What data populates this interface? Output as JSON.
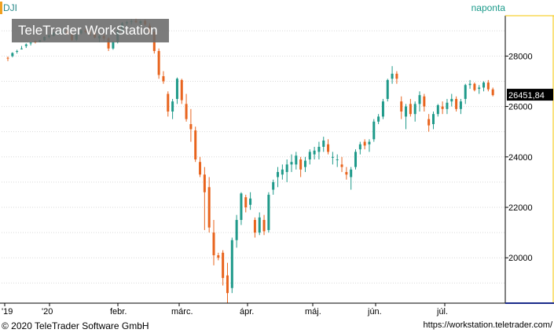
{
  "header": {
    "symbol": "DJI",
    "period": "naponta"
  },
  "watermark": "TeleTrader WorkStation",
  "footer": {
    "copyright": "© 2020 TeleTrader Software GmbH",
    "url": "https://workstation.teletrader.com/"
  },
  "colors": {
    "up": "#1f9a8a",
    "down": "#e8641e",
    "grid": "#d9d9d9",
    "axis_highlight": "#f4c400",
    "last_price_bg": "#000000"
  },
  "chart_data": {
    "type": "candlestick",
    "title": "DJI",
    "ylim": [
      18200,
      29600
    ],
    "y_ticks": [
      20000,
      22000,
      24000,
      26000,
      28000
    ],
    "y_tick_labels": [
      "20000",
      "22000",
      "24000",
      "26000",
      "28000"
    ],
    "x_tick_labels": [
      "'19",
      "'20",
      "febr.",
      "márc.",
      "ápr.",
      "máj.",
      "jún.",
      "júl."
    ],
    "last_price": 26451.84,
    "last_price_label": "26451,84",
    "grid": true,
    "series": [
      {
        "name": "DJI",
        "ohlc": [
          [
            27930,
            27980,
            27800,
            27920
          ],
          [
            28000,
            28150,
            27950,
            28120
          ],
          [
            28200,
            28250,
            28100,
            28200
          ],
          [
            28280,
            28400,
            28260,
            28300
          ],
          [
            28400,
            28500,
            28320,
            28460
          ],
          [
            28500,
            28550,
            28420,
            28530
          ],
          [
            28600,
            28620,
            28500,
            28540
          ],
          [
            28560,
            28640,
            28540,
            28630
          ],
          [
            28620,
            28780,
            28600,
            28760
          ],
          [
            28750,
            28850,
            28700,
            28820
          ],
          [
            28800,
            28950,
            28780,
            28930
          ],
          [
            28900,
            29000,
            28850,
            28920
          ],
          [
            28950,
            29100,
            28900,
            28960
          ],
          [
            28980,
            29060,
            28850,
            28900
          ],
          [
            28850,
            28900,
            28600,
            28640
          ],
          [
            28650,
            28900,
            28600,
            28850
          ],
          [
            28900,
            29050,
            28860,
            29020
          ],
          [
            29000,
            29100,
            28900,
            28950
          ],
          [
            28950,
            29050,
            28800,
            28920
          ],
          [
            28900,
            29000,
            28700,
            28730
          ],
          [
            28700,
            28850,
            28550,
            28800
          ],
          [
            28800,
            28900,
            28600,
            28700
          ],
          [
            28700,
            28750,
            28200,
            28300
          ],
          [
            28300,
            28600,
            28250,
            28550
          ],
          [
            28550,
            29050,
            28500,
            29000
          ],
          [
            29000,
            29350,
            28950,
            29300
          ],
          [
            29300,
            29400,
            29200,
            29350
          ],
          [
            29350,
            29450,
            29250,
            29380
          ],
          [
            29400,
            29480,
            29300,
            29340
          ],
          [
            29300,
            29420,
            29250,
            29380
          ],
          [
            29400,
            29450,
            29200,
            29250
          ],
          [
            29200,
            29300,
            28900,
            28950
          ],
          [
            28950,
            29000,
            28100,
            28200
          ],
          [
            28200,
            28300,
            27100,
            27250
          ],
          [
            27200,
            27400,
            26900,
            27000
          ],
          [
            26500,
            26600,
            25600,
            25800
          ],
          [
            25800,
            26300,
            25500,
            26200
          ],
          [
            26300,
            27150,
            26100,
            27100
          ],
          [
            27050,
            27100,
            26100,
            26250
          ],
          [
            26100,
            26500,
            25400,
            25500
          ],
          [
            25300,
            25900,
            24600,
            25100
          ],
          [
            25050,
            25200,
            23800,
            23900
          ],
          [
            23800,
            24000,
            23200,
            23300
          ],
          [
            23300,
            23600,
            21100,
            22600
          ],
          [
            22800,
            23200,
            21000,
            21200
          ],
          [
            21000,
            21500,
            19700,
            20100
          ],
          [
            20100,
            20200,
            19900,
            20000
          ],
          [
            20200,
            20300,
            18900,
            19200
          ],
          [
            19300,
            19800,
            18200,
            18600
          ],
          [
            18800,
            20800,
            18600,
            20700
          ],
          [
            20700,
            21700,
            20400,
            21500
          ],
          [
            21500,
            22600,
            21300,
            22550
          ],
          [
            22400,
            22500,
            21800,
            22000
          ],
          [
            22100,
            22600,
            21900,
            22350
          ],
          [
            21500,
            21600,
            20800,
            21000
          ],
          [
            21000,
            21800,
            20900,
            21600
          ],
          [
            21500,
            21700,
            20900,
            21050
          ],
          [
            21100,
            22600,
            21000,
            22500
          ],
          [
            22700,
            23100,
            22500,
            23000
          ],
          [
            23200,
            23600,
            22800,
            23400
          ],
          [
            23300,
            23700,
            23100,
            23500
          ],
          [
            23400,
            23900,
            23000,
            23700
          ],
          [
            23700,
            24100,
            23400,
            23800
          ],
          [
            23700,
            24200,
            23500,
            24050
          ],
          [
            23900,
            24000,
            23200,
            23500
          ],
          [
            23600,
            24000,
            23400,
            23850
          ],
          [
            23900,
            24300,
            23700,
            24200
          ],
          [
            24100,
            24400,
            23900,
            24250
          ],
          [
            24200,
            24600,
            23900,
            24400
          ],
          [
            24400,
            24800,
            24200,
            24650
          ],
          [
            24500,
            24700,
            24100,
            24200
          ],
          [
            24000,
            24200,
            23700,
            24000
          ],
          [
            23900,
            24100,
            23600,
            23900
          ],
          [
            23700,
            24000,
            23400,
            23600
          ],
          [
            23400,
            23600,
            23100,
            23300
          ],
          [
            23200,
            23600,
            22700,
            23500
          ],
          [
            23600,
            24300,
            23500,
            24200
          ],
          [
            24300,
            24600,
            24100,
            24500
          ],
          [
            24600,
            24700,
            24300,
            24450
          ],
          [
            24500,
            24700,
            24200,
            24600
          ],
          [
            24700,
            25500,
            24600,
            25400
          ],
          [
            25400,
            25700,
            25300,
            25600
          ],
          [
            25600,
            26300,
            25500,
            26200
          ],
          [
            26300,
            27100,
            26200,
            27050
          ],
          [
            27100,
            27600,
            26900,
            27300
          ],
          [
            27300,
            27400,
            26900,
            27100
          ],
          [
            26200,
            26400,
            25500,
            25800
          ],
          [
            25600,
            26100,
            25100,
            26000
          ],
          [
            26100,
            26300,
            25600,
            25700
          ],
          [
            25700,
            26200,
            25400,
            26100
          ],
          [
            26100,
            26600,
            25800,
            26450
          ],
          [
            26400,
            26500,
            25800,
            26000
          ],
          [
            25500,
            25700,
            25000,
            25250
          ],
          [
            25300,
            25800,
            25100,
            25700
          ],
          [
            25700,
            26100,
            25600,
            26050
          ],
          [
            26000,
            26200,
            25700,
            25900
          ],
          [
            25900,
            26300,
            25700,
            26150
          ],
          [
            26200,
            26500,
            26000,
            26300
          ],
          [
            26300,
            26400,
            25800,
            25900
          ],
          [
            25900,
            26300,
            25700,
            26200
          ],
          [
            26300,
            26900,
            26100,
            26850
          ],
          [
            26850,
            27050,
            26700,
            26900
          ],
          [
            26900,
            26950,
            26600,
            26650
          ],
          [
            26700,
            26850,
            26500,
            26750
          ],
          [
            26750,
            27000,
            26600,
            26950
          ],
          [
            26950,
            27050,
            26600,
            26680
          ],
          [
            26680,
            26750,
            26400,
            26450
          ]
        ]
      }
    ]
  }
}
